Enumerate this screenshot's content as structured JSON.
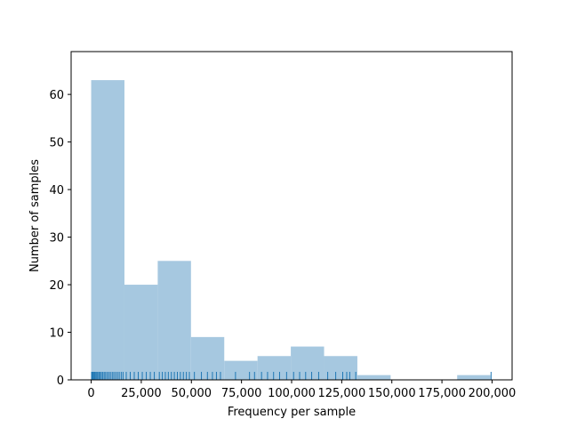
{
  "chart_data": {
    "type": "bar",
    "subtype": "histogram-with-rug",
    "xlabel": "Frequency per sample",
    "ylabel": "Number of samples",
    "xlim": [
      -10000,
      210000
    ],
    "ylim": [
      0,
      69
    ],
    "grid": false,
    "bar_color": "#a6c8e0",
    "rug_color": "#1f77b4",
    "bins": [
      {
        "x0": 0,
        "x1": 16600,
        "count": 63
      },
      {
        "x0": 16600,
        "x1": 33200,
        "count": 20
      },
      {
        "x0": 33200,
        "x1": 49800,
        "count": 25
      },
      {
        "x0": 49800,
        "x1": 66400,
        "count": 9
      },
      {
        "x0": 66400,
        "x1": 83000,
        "count": 4
      },
      {
        "x0": 83000,
        "x1": 99600,
        "count": 5
      },
      {
        "x0": 99600,
        "x1": 116200,
        "count": 7
      },
      {
        "x0": 116200,
        "x1": 132800,
        "count": 5
      },
      {
        "x0": 132800,
        "x1": 149400,
        "count": 1
      },
      {
        "x0": 149400,
        "x1": 166000,
        "count": 0
      },
      {
        "x0": 166000,
        "x1": 182600,
        "count": 0
      },
      {
        "x0": 182600,
        "x1": 199200,
        "count": 1
      }
    ],
    "rug": [
      200,
      600,
      1000,
      1400,
      1800,
      2300,
      2800,
      3300,
      3900,
      4500,
      5100,
      5800,
      6500,
      7200,
      8000,
      8800,
      9600,
      10500,
      11300,
      12200,
      13100,
      14000,
      15000,
      15900,
      17500,
      19500,
      21500,
      23500,
      25500,
      27500,
      29500,
      31500,
      34000,
      35500,
      37000,
      38500,
      40000,
      41500,
      43000,
      44500,
      46000,
      47500,
      49000,
      51500,
      55000,
      58000,
      60500,
      62500,
      64500,
      72000,
      79000,
      81500,
      85000,
      88000,
      91000,
      94000,
      97500,
      101000,
      104000,
      107000,
      110000,
      113500,
      118000,
      122000,
      125500,
      127500,
      129000,
      132000,
      199500
    ],
    "x_ticks": [
      {
        "value": 0,
        "label": "0"
      },
      {
        "value": 25000,
        "label": "25,000"
      },
      {
        "value": 50000,
        "label": "50,000"
      },
      {
        "value": 75000,
        "label": "75,000"
      },
      {
        "value": 100000,
        "label": "100,000"
      },
      {
        "value": 125000,
        "label": "125,000"
      },
      {
        "value": 150000,
        "label": "150,000"
      },
      {
        "value": 175000,
        "label": "175,000"
      },
      {
        "value": 200000,
        "label": "200,000"
      }
    ],
    "y_ticks": [
      {
        "value": 0,
        "label": "0"
      },
      {
        "value": 10,
        "label": "10"
      },
      {
        "value": 20,
        "label": "20"
      },
      {
        "value": 30,
        "label": "30"
      },
      {
        "value": 40,
        "label": "40"
      },
      {
        "value": 50,
        "label": "50"
      },
      {
        "value": 60,
        "label": "60"
      }
    ]
  }
}
